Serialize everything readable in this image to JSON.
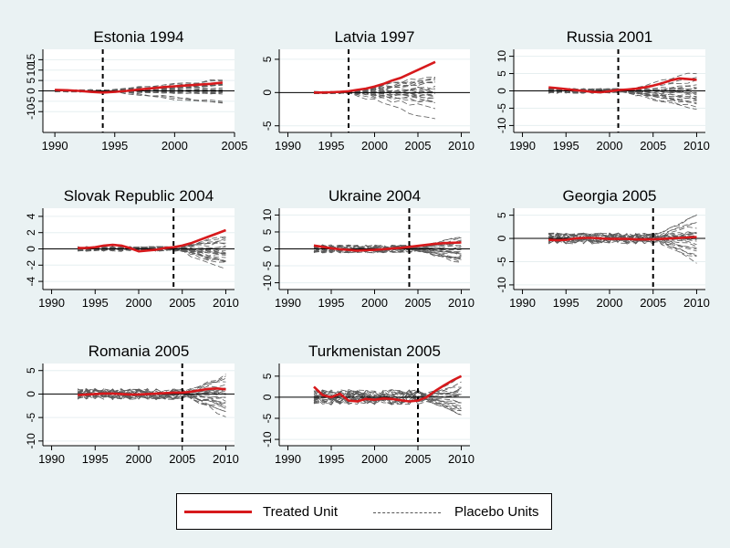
{
  "chart_data": [
    {
      "type": "line",
      "title": "Estonia 1994",
      "event_year": 1994,
      "xlim": [
        1989,
        2005
      ],
      "ylim": [
        -20,
        20
      ],
      "xticks": [
        1990,
        1995,
        2000,
        2005
      ],
      "yticks": [
        {
          "v": -10,
          "label": "-10"
        },
        {
          "v": -5,
          "label": "-5"
        },
        {
          "v": 0,
          "label": "0"
        },
        {
          "v": 5,
          "label": "5"
        },
        {
          "v": 10,
          "label": "10"
        },
        {
          "v": 15,
          "label": "15"
        }
      ],
      "grid_y": [
        -10,
        -5,
        0,
        5,
        10,
        15
      ],
      "treated": {
        "x": [
          1990,
          1991,
          1992,
          1993,
          1994,
          1995,
          1996,
          1997,
          1998,
          1999,
          2000,
          2001,
          2002,
          2003,
          2004
        ],
        "y": [
          0.5,
          0.3,
          0,
          -0.5,
          -0.8,
          -0.5,
          0,
          0.6,
          1.2,
          1.8,
          2.2,
          2.6,
          3.0,
          3.4,
          4.0
        ]
      },
      "placebo": {
        "start": 1990,
        "end": 2004,
        "pre_spread": 1.0,
        "post_spread": 8,
        "count": 24
      }
    },
    {
      "type": "line",
      "title": "Latvia 1997",
      "event_year": 1997,
      "xlim": [
        1989,
        2011
      ],
      "ylim": [
        -6,
        6.5
      ],
      "xticks": [
        1990,
        1995,
        2000,
        2005,
        2010
      ],
      "yticks": [
        {
          "v": -5,
          "label": "-5"
        },
        {
          "v": 0,
          "label": "0"
        },
        {
          "v": 5,
          "label": "5"
        }
      ],
      "grid_y": [
        -5,
        0,
        5
      ],
      "treated": {
        "x": [
          1993,
          1994,
          1995,
          1996,
          1997,
          1998,
          1999,
          2000,
          2001,
          2002,
          2003,
          2004,
          2005,
          2006,
          2007
        ],
        "y": [
          0,
          0,
          0.05,
          0.1,
          0.2,
          0.4,
          0.6,
          0.9,
          1.3,
          1.8,
          2.2,
          2.8,
          3.4,
          4.0,
          4.6
        ]
      },
      "placebo": {
        "start": 1993,
        "end": 2007,
        "pre_spread": 0.3,
        "post_spread": 4.5,
        "count": 24
      }
    },
    {
      "type": "line",
      "title": "Russia 2001",
      "event_year": 2001,
      "xlim": [
        1989,
        2011
      ],
      "ylim": [
        -12,
        12
      ],
      "xticks": [
        1990,
        1995,
        2000,
        2005,
        2010
      ],
      "yticks": [
        {
          "v": -10,
          "label": "-10"
        },
        {
          "v": -5,
          "label": "-5"
        },
        {
          "v": 0,
          "label": "0"
        },
        {
          "v": 5,
          "label": "5"
        },
        {
          "v": 10,
          "label": "10"
        }
      ],
      "grid_y": [
        -10,
        -5,
        0,
        5,
        10
      ],
      "treated": {
        "x": [
          1993,
          1994,
          1995,
          1996,
          1997,
          1998,
          1999,
          2000,
          2001,
          2002,
          2003,
          2004,
          2005,
          2006,
          2007,
          2008,
          2009,
          2010
        ],
        "y": [
          1.0,
          0.8,
          0.5,
          0.2,
          0,
          -0.3,
          -0.4,
          -0.1,
          0.2,
          0.4,
          0.6,
          1.0,
          1.5,
          2.2,
          3.0,
          3.6,
          3.4,
          3.2
        ]
      },
      "placebo": {
        "start": 1993,
        "end": 2010,
        "pre_spread": 1.2,
        "post_spread": 6,
        "count": 24
      }
    },
    {
      "type": "line",
      "title": "Slovak Republic 2004",
      "event_year": 2004,
      "xlim": [
        1989,
        2011
      ],
      "ylim": [
        -5,
        5
      ],
      "xticks": [
        1990,
        1995,
        2000,
        2005,
        2010
      ],
      "yticks": [
        {
          "v": -4,
          "label": "-4"
        },
        {
          "v": -2,
          "label": "-2"
        },
        {
          "v": 0,
          "label": "0"
        },
        {
          "v": 2,
          "label": "2"
        },
        {
          "v": 4,
          "label": "4"
        }
      ],
      "grid_y": [
        -4,
        -2,
        0,
        2,
        4
      ],
      "treated": {
        "x": [
          1993,
          1994,
          1995,
          1996,
          1997,
          1998,
          1999,
          2000,
          2001,
          2002,
          2003,
          2004,
          2005,
          2006,
          2007,
          2008,
          2009,
          2010
        ],
        "y": [
          0.1,
          0.1,
          0.2,
          0.4,
          0.5,
          0.4,
          0.1,
          -0.3,
          -0.2,
          -0.1,
          0.1,
          0.2,
          0.4,
          0.7,
          1.1,
          1.5,
          1.9,
          2.3
        ]
      },
      "placebo": {
        "start": 1993,
        "end": 2010,
        "pre_spread": 0.5,
        "post_spread": 3.2,
        "count": 24
      }
    },
    {
      "type": "line",
      "title": "Ukraine 2004",
      "event_year": 2004,
      "xlim": [
        1989,
        2011
      ],
      "ylim": [
        -12,
        12
      ],
      "xticks": [
        1990,
        1995,
        2000,
        2005,
        2010
      ],
      "yticks": [
        {
          "v": -10,
          "label": "-10"
        },
        {
          "v": -5,
          "label": "-5"
        },
        {
          "v": 0,
          "label": "0"
        },
        {
          "v": 5,
          "label": "5"
        },
        {
          "v": 10,
          "label": "10"
        }
      ],
      "grid_y": [
        -10,
        -5,
        0,
        5,
        10
      ],
      "treated": {
        "x": [
          1993,
          1994,
          1995,
          1996,
          1997,
          1998,
          1999,
          2000,
          2001,
          2002,
          2003,
          2004,
          2005,
          2006,
          2007,
          2008,
          2009,
          2010
        ],
        "y": [
          1.0,
          0.6,
          0.2,
          -0.1,
          -0.3,
          -0.5,
          -0.4,
          -0.3,
          -0.1,
          0.1,
          0.3,
          0.6,
          0.9,
          1.2,
          1.5,
          1.7,
          1.8,
          1.9
        ]
      },
      "placebo": {
        "start": 1993,
        "end": 2010,
        "pre_spread": 2.0,
        "post_spread": 6,
        "count": 24
      }
    },
    {
      "type": "line",
      "title": "Georgia 2005",
      "event_year": 2005,
      "xlim": [
        1989,
        2011
      ],
      "ylim": [
        -11,
        6.5
      ],
      "xticks": [
        1990,
        1995,
        2000,
        2005,
        2010
      ],
      "yticks": [
        {
          "v": -10,
          "label": "-10"
        },
        {
          "v": -5,
          "label": "-5"
        },
        {
          "v": 0,
          "label": "0"
        },
        {
          "v": 5,
          "label": "5"
        }
      ],
      "grid_y": [
        -10,
        -5,
        0,
        5
      ],
      "treated": {
        "x": [
          1993,
          1994,
          1995,
          1996,
          1997,
          1998,
          1999,
          2000,
          2001,
          2002,
          2003,
          2004,
          2005,
          2006,
          2007,
          2008,
          2009,
          2010
        ],
        "y": [
          -0.3,
          -0.4,
          -0.3,
          0,
          0.1,
          0.1,
          0,
          -0.1,
          -0.1,
          -0.1,
          -0.2,
          -0.2,
          -0.2,
          -0.1,
          0,
          0.1,
          0.2,
          0.3
        ]
      },
      "placebo": {
        "start": 1993,
        "end": 2010,
        "pre_spread": 2.0,
        "post_spread": 6,
        "count": 24
      }
    },
    {
      "type": "line",
      "title": "Romania 2005",
      "event_year": 2005,
      "xlim": [
        1989,
        2011
      ],
      "ylim": [
        -11,
        6.5
      ],
      "xticks": [
        1990,
        1995,
        2000,
        2005,
        2010
      ],
      "yticks": [
        {
          "v": -10,
          "label": "-10"
        },
        {
          "v": -5,
          "label": "-5"
        },
        {
          "v": 0,
          "label": "0"
        },
        {
          "v": 5,
          "label": "5"
        }
      ],
      "grid_y": [
        -10,
        -5,
        0,
        5
      ],
      "treated": {
        "x": [
          1993,
          1994,
          1995,
          1996,
          1997,
          1998,
          1999,
          2000,
          2001,
          2002,
          2003,
          2004,
          2005,
          2006,
          2007,
          2008,
          2009,
          2010
        ],
        "y": [
          -0.2,
          -0.1,
          0,
          0.1,
          0.1,
          0,
          -0.1,
          -0.1,
          0,
          0.1,
          0.2,
          0.3,
          0.3,
          0.5,
          0.8,
          1.1,
          1.2,
          1.0
        ]
      },
      "placebo": {
        "start": 1993,
        "end": 2010,
        "pre_spread": 2.0,
        "post_spread": 6,
        "count": 24
      }
    },
    {
      "type": "line",
      "title": "Turkmenistan 2005",
      "event_year": 2005,
      "xlim": [
        1989,
        2011
      ],
      "ylim": [
        -11.5,
        8
      ],
      "xticks": [
        1990,
        1995,
        2000,
        2005,
        2010
      ],
      "yticks": [
        {
          "v": -10,
          "label": "-10"
        },
        {
          "v": -5,
          "label": "-5"
        },
        {
          "v": 0,
          "label": "0"
        },
        {
          "v": 5,
          "label": "5"
        }
      ],
      "grid_y": [
        -10,
        -5,
        0,
        5
      ],
      "treated": {
        "x": [
          1993,
          1994,
          1995,
          1996,
          1997,
          1998,
          1999,
          2000,
          2001,
          2002,
          2003,
          2004,
          2005,
          2006,
          2007,
          2008,
          2009,
          2010
        ],
        "y": [
          2.5,
          0.5,
          0,
          0.8,
          -0.8,
          -1.0,
          -0.4,
          -0.6,
          -0.3,
          -0.4,
          -0.7,
          -1.0,
          -0.8,
          0,
          1.5,
          2.8,
          4.0,
          5.0
        ]
      },
      "placebo": {
        "start": 1993,
        "end": 2010,
        "pre_spread": 3.0,
        "post_spread": 6,
        "count": 24
      }
    }
  ],
  "legend": {
    "treated": "Treated Unit",
    "placebo": "Placebo Units"
  },
  "colors": {
    "background": "#eaf2f3",
    "plot_bg": "#ffffff",
    "treated": "#d7191c",
    "placebo": "#5a5a5a",
    "grid": "#e6eff0"
  }
}
